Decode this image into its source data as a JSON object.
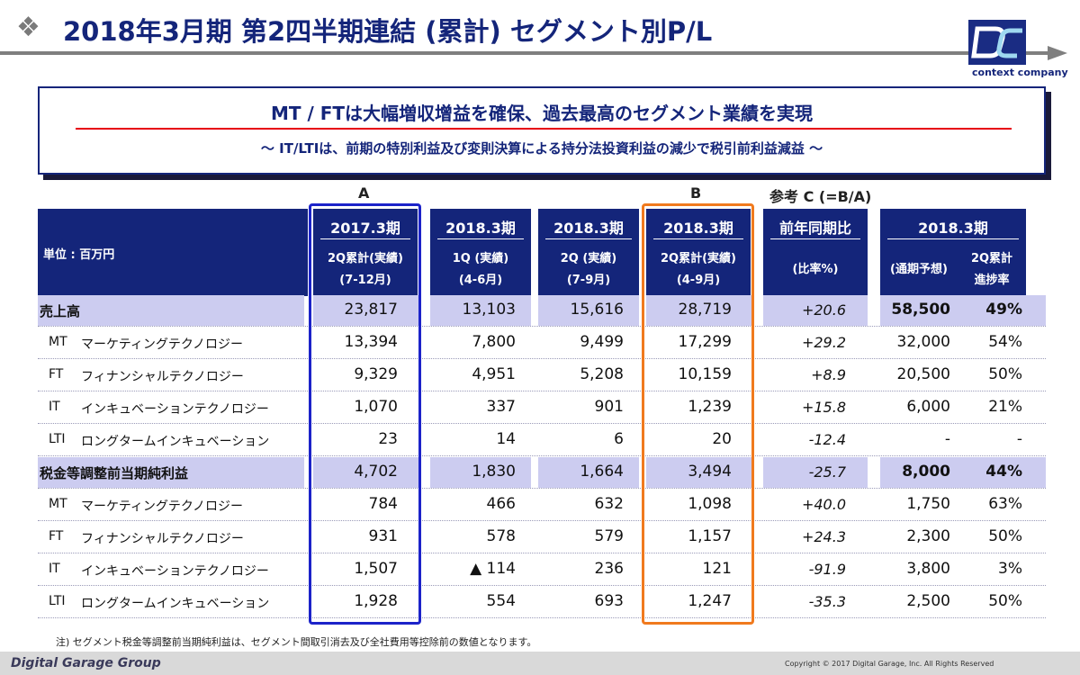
{
  "header": {
    "title": "2018年3月期 第2四半期連結 (累計) セグメント別P/L",
    "logo_tagline": "context company"
  },
  "headline": {
    "main": "MT / FTは大幅増収增益を確保、過去最高のセグメント業績を実現",
    "sub": "〜 IT/LTIは、前期の特別利益及び変則決算による持分法投資利益の減少で税引前利益減益 〜"
  },
  "group_labels": {
    "a": "A",
    "b": "B",
    "c": "参考 C (=B/A)"
  },
  "table": {
    "unit_label": "単位 : 百万円",
    "columns": [
      {
        "line1": "2017.3期",
        "line2": "2Q累計(実績)",
        "line3": "(7-12月)"
      },
      {
        "line1": "2018.3期",
        "line2": "1Q (実績)",
        "line3": "(4-6月)"
      },
      {
        "line1": "2018.3期",
        "line2": "2Q (実績)",
        "line3": "(7-9月)"
      },
      {
        "line1": "2018.3期",
        "line2": "2Q累計(実績)",
        "line3": "(4-9月)"
      },
      {
        "line1": "前年同期比",
        "line2": "(比率%)"
      },
      {
        "line1": "2018.3期",
        "sub_a": "(通期予想)",
        "sub_b1": "2Q累計",
        "sub_b2": "進捗率"
      }
    ],
    "rows": [
      {
        "seg": "",
        "name": "売上高",
        "a": "23,817",
        "q1": "13,103",
        "q2": "15,616",
        "b": "28,719",
        "yoy": "+20.6",
        "fy": "58,500",
        "prog": "49%",
        "total": true
      },
      {
        "seg": "MT",
        "name": "マーケティングテクノロジー",
        "a": "13,394",
        "q1": "7,800",
        "q2": "9,499",
        "b": "17,299",
        "yoy": "+29.2",
        "fy": "32,000",
        "prog": "54%"
      },
      {
        "seg": "FT",
        "name": "フィナンシャルテクノロジー",
        "a": "9,329",
        "q1": "4,951",
        "q2": "5,208",
        "b": "10,159",
        "yoy": "+8.9",
        "fy": "20,500",
        "prog": "50%"
      },
      {
        "seg": "IT",
        "name": "インキュベーションテクノロジー",
        "a": "1,070",
        "q1": "337",
        "q2": "901",
        "b": "1,239",
        "yoy": "+15.8",
        "fy": "6,000",
        "prog": "21%"
      },
      {
        "seg": "LTI",
        "name": "ロングタームインキュベーション",
        "a": "23",
        "q1": "14",
        "q2": "6",
        "b": "20",
        "yoy": "-12.4",
        "fy": "-",
        "prog": "-"
      },
      {
        "seg": "",
        "name": "税金等調整前当期純利益",
        "a": "4,702",
        "q1": "1,830",
        "q2": "1,664",
        "b": "3,494",
        "yoy": "-25.7",
        "fy": "8,000",
        "prog": "44%",
        "total": true
      },
      {
        "seg": "MT",
        "name": "マーケティングテクノロジー",
        "a": "784",
        "q1": "466",
        "q2": "632",
        "b": "1,098",
        "yoy": "+40.0",
        "fy": "1,750",
        "prog": "63%"
      },
      {
        "seg": "FT",
        "name": "フィナンシャルテクノロジー",
        "a": "931",
        "q1": "578",
        "q2": "579",
        "b": "1,157",
        "yoy": "+24.3",
        "fy": "2,300",
        "prog": "50%"
      },
      {
        "seg": "IT",
        "name": "インキュベーションテクノロジー",
        "a": "1,507",
        "q1": "▲ 114",
        "q2": "236",
        "b": "121",
        "yoy": "-91.9",
        "fy": "3,800",
        "prog": "3%"
      },
      {
        "seg": "LTI",
        "name": "ロングタームインキュベーション",
        "a": "1,928",
        "q1": "554",
        "q2": "693",
        "b": "1,247",
        "yoy": "-35.3",
        "fy": "2,500",
        "prog": "50%"
      }
    ]
  },
  "note": "注) セグメント税金等調整前当期純利益は、セグメント間取引消去及び全社費用等控除前の数値となります。",
  "footer": {
    "company": "Digital Garage Group",
    "copyright": "Copyright © 2017 Digital Garage, Inc. All Rights Reserved"
  },
  "colors": {
    "navy": "#14257a",
    "band": "#ccccf0",
    "frame_a": "#1c23c9",
    "frame_b": "#f07a1e",
    "accent_red": "#e60012"
  }
}
